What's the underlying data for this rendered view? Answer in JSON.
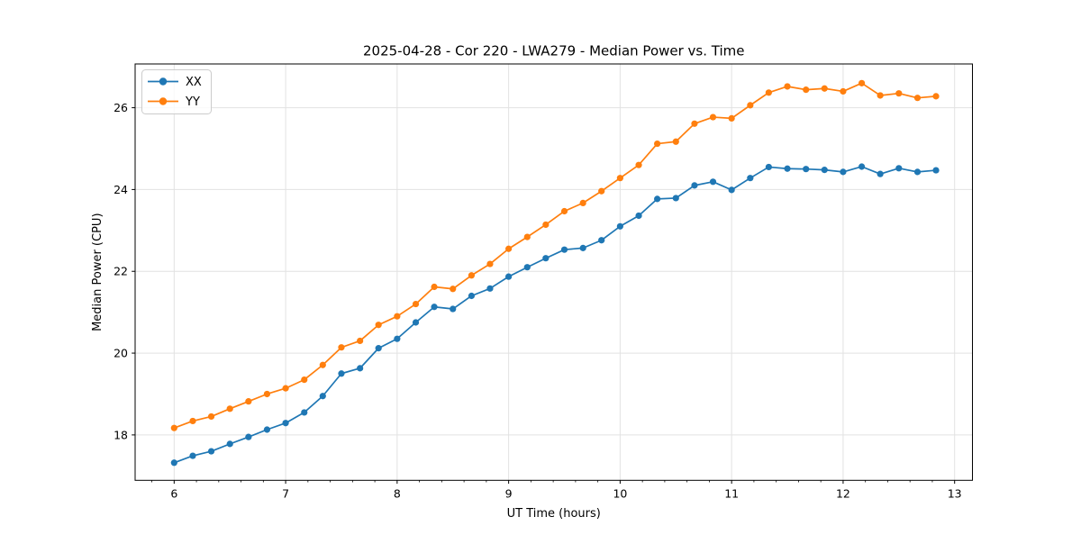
{
  "chart_data": {
    "type": "line",
    "title": "2025-04-28 - Cor 220 - LWA279 - Median Power vs. Time",
    "xlabel": "UT Time (hours)",
    "ylabel": "Median Power (CPU)",
    "xlim": [
      5.65,
      13.16
    ],
    "ylim": [
      16.89,
      27.07
    ],
    "xticks": [
      6,
      7,
      8,
      9,
      10,
      11,
      12,
      13
    ],
    "yticks": [
      18,
      20,
      22,
      24,
      26
    ],
    "x_minor_step": 0.2,
    "grid": true,
    "grid_color": "#e2e2e2",
    "legend_position": "upper-left",
    "x": [
      6.0,
      6.167,
      6.333,
      6.5,
      6.667,
      6.833,
      7.0,
      7.167,
      7.333,
      7.5,
      7.667,
      7.833,
      8.0,
      8.167,
      8.333,
      8.5,
      8.667,
      8.833,
      9.0,
      9.167,
      9.333,
      9.5,
      9.667,
      9.833,
      10.0,
      10.167,
      10.333,
      10.5,
      10.667,
      10.833,
      11.0,
      11.167,
      11.333,
      11.5,
      11.667,
      11.833,
      12.0,
      12.167,
      12.333,
      12.5,
      12.667,
      12.833
    ],
    "series": [
      {
        "name": "XX",
        "color": "#1f77b4",
        "values": [
          17.32,
          17.49,
          17.6,
          17.78,
          17.95,
          18.13,
          18.29,
          18.55,
          18.95,
          19.5,
          19.63,
          20.12,
          20.35,
          20.75,
          21.13,
          21.08,
          21.4,
          21.58,
          21.87,
          22.1,
          22.32,
          22.53,
          22.57,
          22.76,
          23.1,
          23.36,
          23.77,
          23.79,
          24.1,
          24.19,
          23.99,
          24.28,
          24.55,
          24.51,
          24.5,
          24.48,
          24.43,
          24.56,
          24.38,
          24.52,
          24.43,
          24.47
        ]
      },
      {
        "name": "YY",
        "color": "#ff7f0e",
        "values": [
          18.17,
          18.34,
          18.45,
          18.64,
          18.82,
          19.0,
          19.14,
          19.35,
          19.71,
          20.14,
          20.3,
          20.69,
          20.9,
          21.2,
          21.62,
          21.57,
          21.9,
          22.18,
          22.55,
          22.84,
          23.14,
          23.47,
          23.67,
          23.96,
          24.28,
          24.6,
          25.12,
          25.17,
          25.61,
          25.77,
          25.74,
          26.06,
          26.37,
          26.52,
          26.44,
          26.47,
          26.4,
          26.6,
          26.3,
          26.35,
          26.24,
          26.28
        ]
      }
    ]
  }
}
